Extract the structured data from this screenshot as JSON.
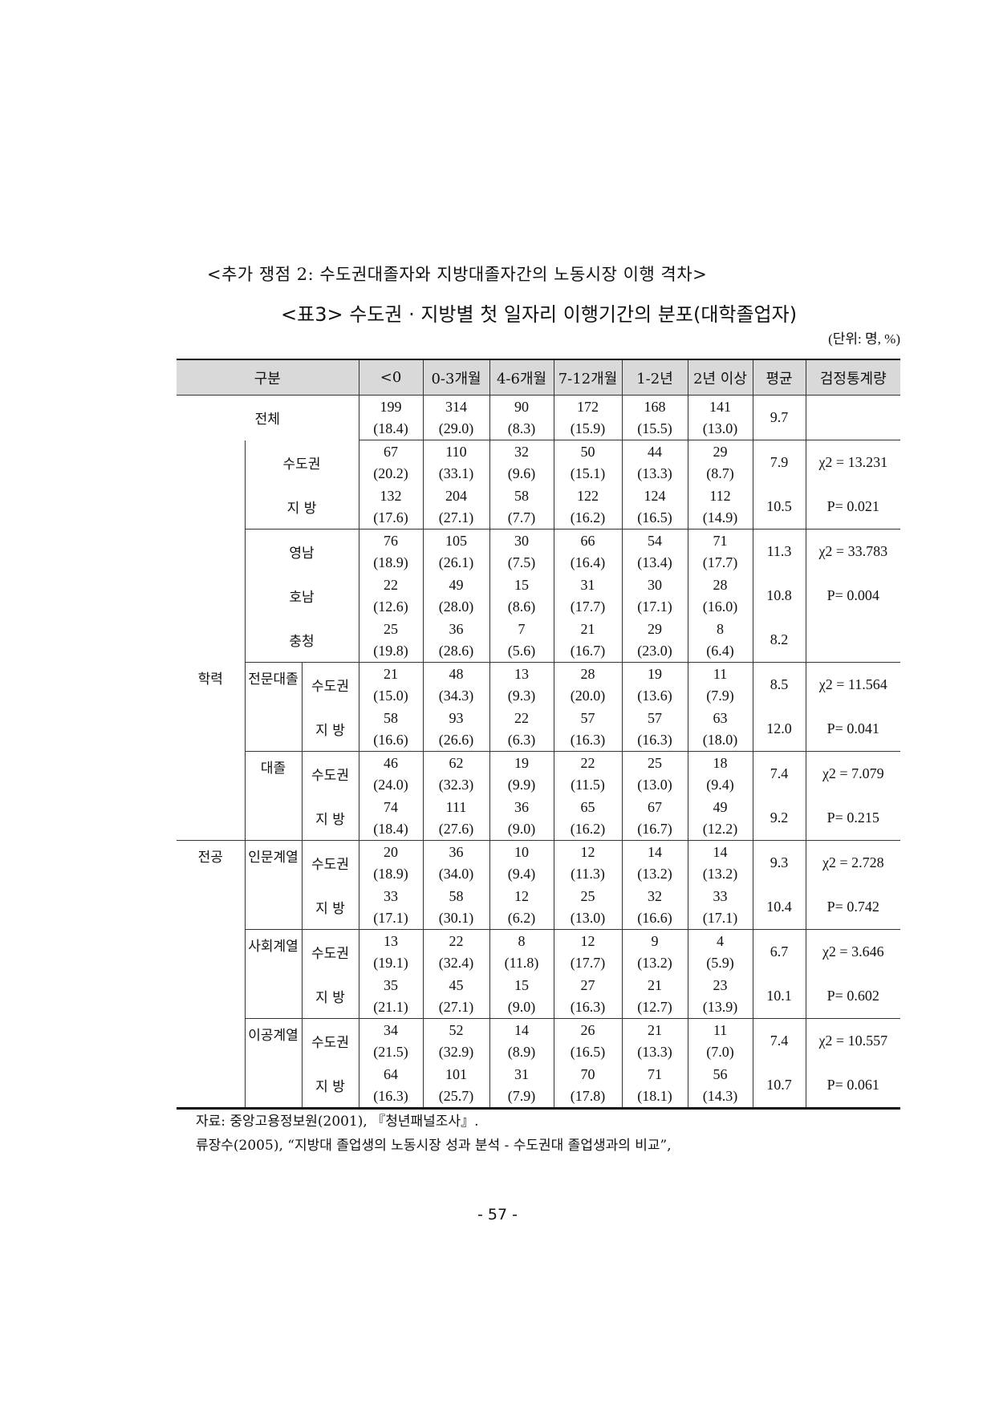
{
  "heading": "<추가 쟁점 2: 수도권대졸자와 지방대졸자간의 노동시장 이행 격차>",
  "table_title": "<표3> 수도권 · 지방별 첫 일자리 이행기간의 분포(대학졸업자)",
  "unit": "(단위: 명, %)",
  "table": {
    "headers": [
      "구분",
      "<0",
      "0-3개월",
      "4-6개월",
      "7-12개월",
      "1-2년",
      "2년 이상",
      "평균",
      "검정통계량"
    ],
    "sections": {
      "education": "학력",
      "major": "전공"
    },
    "subgroups": [
      "전문대졸",
      "대졸",
      "인문계열",
      "사회계열",
      "이공계열"
    ],
    "rows": [
      {
        "label": "전체",
        "count": [
          "199",
          "314",
          "90",
          "172",
          "168",
          "141"
        ],
        "pct": [
          "(18.4)",
          "(29.0)",
          "(8.3)",
          "(15.9)",
          "(15.5)",
          "(13.0)"
        ],
        "mean": "9.7",
        "stat": ""
      },
      {
        "label": "수도권",
        "count": [
          "67",
          "110",
          "32",
          "50",
          "44",
          "29"
        ],
        "pct": [
          "(20.2)",
          "(33.1)",
          "(9.6)",
          "(15.1)",
          "(13.3)",
          "(8.7)"
        ],
        "mean": "7.9",
        "stat": "χ2 = 13.231"
      },
      {
        "label": "지  방",
        "count": [
          "132",
          "204",
          "58",
          "122",
          "124",
          "112"
        ],
        "pct": [
          "(17.6)",
          "(27.1)",
          "(7.7)",
          "(16.2)",
          "(16.5)",
          "(14.9)"
        ],
        "mean": "10.5",
        "stat": "P= 0.021"
      },
      {
        "label": "영남",
        "count": [
          "76",
          "105",
          "30",
          "66",
          "54",
          "71"
        ],
        "pct": [
          "(18.9)",
          "(26.1)",
          "(7.5)",
          "(16.4)",
          "(13.4)",
          "(17.7)"
        ],
        "mean": "11.3",
        "stat": "χ2 = 33.783"
      },
      {
        "label": "호남",
        "count": [
          "22",
          "49",
          "15",
          "31",
          "30",
          "28"
        ],
        "pct": [
          "(12.6)",
          "(28.0)",
          "(8.6)",
          "(17.7)",
          "(17.1)",
          "(16.0)"
        ],
        "mean": "10.8",
        "stat": "P= 0.004"
      },
      {
        "label": "충청",
        "count": [
          "25",
          "36",
          "7",
          "21",
          "29",
          "8"
        ],
        "pct": [
          "(19.8)",
          "(28.6)",
          "(5.6)",
          "(16.7)",
          "(23.0)",
          "(6.4)"
        ],
        "mean": "8.2",
        "stat": ""
      },
      {
        "label": "수도권",
        "count": [
          "21",
          "48",
          "13",
          "28",
          "19",
          "11"
        ],
        "pct": [
          "(15.0)",
          "(34.3)",
          "(9.3)",
          "(20.0)",
          "(13.6)",
          "(7.9)"
        ],
        "mean": "8.5",
        "stat": "χ2 = 11.564"
      },
      {
        "label": "지  방",
        "count": [
          "58",
          "93",
          "22",
          "57",
          "57",
          "63"
        ],
        "pct": [
          "(16.6)",
          "(26.6)",
          "(6.3)",
          "(16.3)",
          "(16.3)",
          "(18.0)"
        ],
        "mean": "12.0",
        "stat": "P= 0.041"
      },
      {
        "label": "수도권",
        "count": [
          "46",
          "62",
          "19",
          "22",
          "25",
          "18"
        ],
        "pct": [
          "(24.0)",
          "(32.3)",
          "(9.9)",
          "(11.5)",
          "(13.0)",
          "(9.4)"
        ],
        "mean": "7.4",
        "stat": "χ2 = 7.079"
      },
      {
        "label": "지  방",
        "count": [
          "74",
          "111",
          "36",
          "65",
          "67",
          "49"
        ],
        "pct": [
          "(18.4)",
          "(27.6)",
          "(9.0)",
          "(16.2)",
          "(16.7)",
          "(12.2)"
        ],
        "mean": "9.2",
        "stat": "P= 0.215"
      },
      {
        "label": "수도권",
        "count": [
          "20",
          "36",
          "10",
          "12",
          "14",
          "14"
        ],
        "pct": [
          "(18.9)",
          "(34.0)",
          "(9.4)",
          "(11.3)",
          "(13.2)",
          "(13.2)"
        ],
        "mean": "9.3",
        "stat": "χ2 = 2.728"
      },
      {
        "label": "지  방",
        "count": [
          "33",
          "58",
          "12",
          "25",
          "32",
          "33"
        ],
        "pct": [
          "(17.1)",
          "(30.1)",
          "(6.2)",
          "(13.0)",
          "(16.6)",
          "(17.1)"
        ],
        "mean": "10.4",
        "stat": "P= 0.742"
      },
      {
        "label": "수도권",
        "count": [
          "13",
          "22",
          "8",
          "12",
          "9",
          "4"
        ],
        "pct": [
          "(19.1)",
          "(32.4)",
          "(11.8)",
          "(17.7)",
          "(13.2)",
          "(5.9)"
        ],
        "mean": "6.7",
        "stat": "χ2 = 3.646"
      },
      {
        "label": "지  방",
        "count": [
          "35",
          "45",
          "15",
          "27",
          "21",
          "23"
        ],
        "pct": [
          "(21.1)",
          "(27.1)",
          "(9.0)",
          "(16.3)",
          "(12.7)",
          "(13.9)"
        ],
        "mean": "10.1",
        "stat": "P= 0.602"
      },
      {
        "label": "수도권",
        "count": [
          "34",
          "52",
          "14",
          "26",
          "21",
          "11"
        ],
        "pct": [
          "(21.5)",
          "(32.9)",
          "(8.9)",
          "(16.5)",
          "(13.3)",
          "(7.0)"
        ],
        "mean": "7.4",
        "stat": "χ2 = 10.557"
      },
      {
        "label": "지  방",
        "count": [
          "64",
          "101",
          "31",
          "70",
          "71",
          "56"
        ],
        "pct": [
          "(16.3)",
          "(25.7)",
          "(7.9)",
          "(17.8)",
          "(18.1)",
          "(14.3)"
        ],
        "mean": "10.7",
        "stat": "P= 0.061"
      }
    ]
  },
  "footnotes": [
    "자료: 중앙고용정보원(2001), 『청년패널조사』.",
    "류장수(2005), “지방대 졸업생의 노동시장 성과 분석 - 수도권대 졸업생과의 비교”,"
  ],
  "page_number": "- 57 -",
  "colors": {
    "header_bg": "#d9d9d9",
    "text": "#111111"
  }
}
